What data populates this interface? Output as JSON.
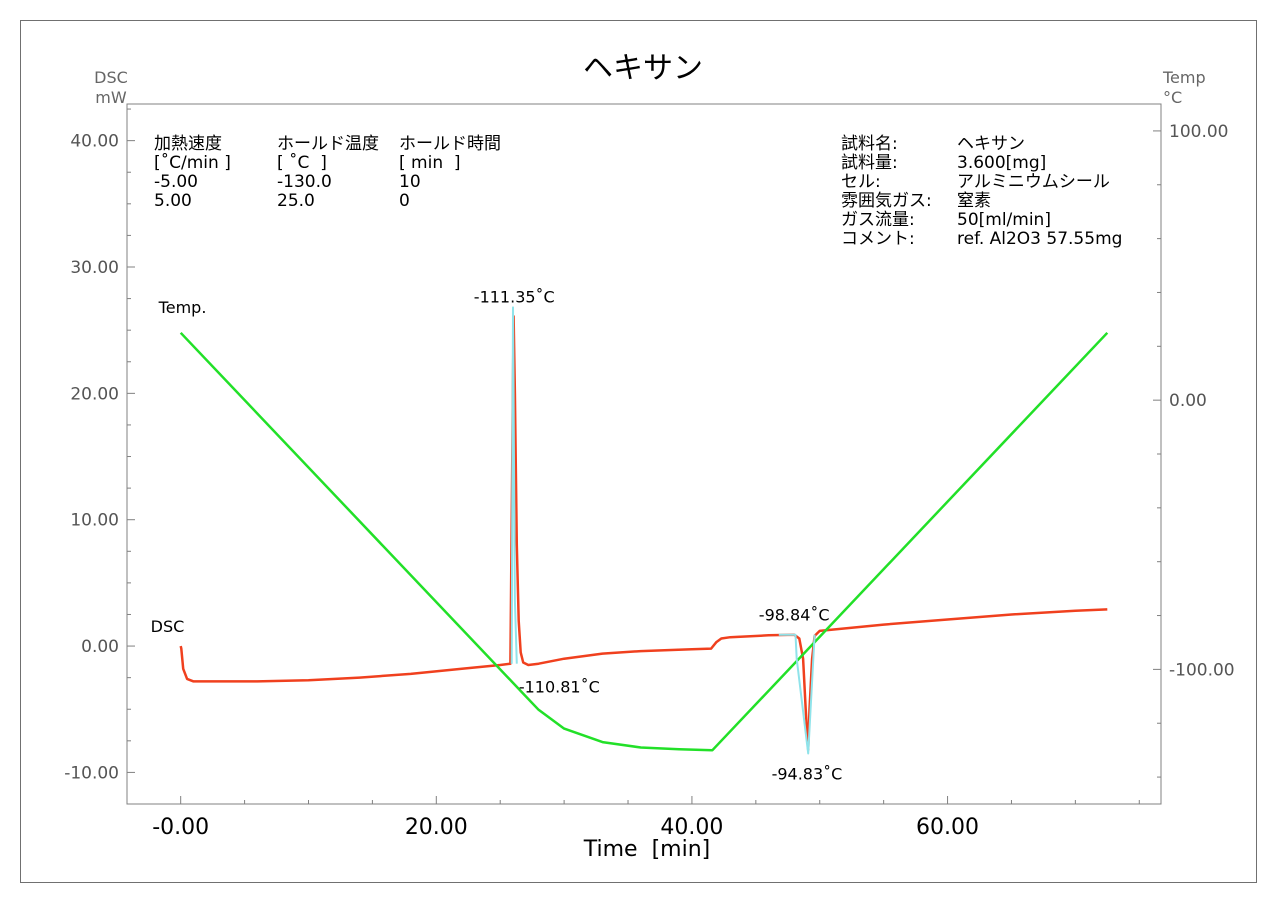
{
  "chart_data": {
    "type": "line",
    "title": "ヘキサン",
    "xlabel": "Time  [min]",
    "ylabel_left": [
      "DSC",
      "mW"
    ],
    "ylabel_right": [
      "Temp",
      "°C"
    ],
    "xlim": [
      -4.2,
      76.7
    ],
    "ylim_left": [
      -12.5,
      42.9
    ],
    "ylim_right": [
      -150,
      110
    ],
    "x_ticks": [
      "-0.00",
      "20.00",
      "40.00",
      "60.00"
    ],
    "y_left_ticks": [
      "40.00",
      "30.00",
      "20.00",
      "10.00",
      "0.00",
      "-10.00"
    ],
    "y_right_ticks": [
      "100.00",
      "0.00",
      "-100.00"
    ],
    "grid": false,
    "program_table": {
      "headers": [
        "加熱速度",
        "ホールド温度",
        "ホールド時間"
      ],
      "units": [
        "[˚C/min ]",
        "[ ˚C  ]",
        "[ min  ]"
      ],
      "rows": [
        [
          "-5.00",
          "-130.0",
          "10"
        ],
        [
          "5.00",
          "25.0",
          "0"
        ]
      ]
    },
    "sample_info": [
      {
        "label": "試料名:",
        "value": "ヘキサン"
      },
      {
        "label": "試料量:",
        "value": "3.600[mg]"
      },
      {
        "label": "セル:",
        "value": "アルミニウムシール"
      },
      {
        "label": "雰囲気ガス:",
        "value": "窒素"
      },
      {
        "label": "ガス流量:",
        "value": "50[ml/min]"
      },
      {
        "label": "コメント:",
        "value": "ref. Al2O3 57.55mg"
      }
    ],
    "series": [
      {
        "name": "DSC",
        "axis": "left",
        "color": "#f0401e",
        "x": [
          0,
          0.05,
          0.2,
          0.5,
          1,
          3,
          6,
          10,
          14,
          18,
          22,
          25,
          25.8,
          25.9,
          26.05,
          26.15,
          26.3,
          26.45,
          26.6,
          26.8,
          27.2,
          28,
          30,
          33,
          36,
          40,
          41.5,
          41.9,
          42.3,
          43,
          46,
          48,
          48.4,
          48.7,
          48.9,
          49.1,
          49.2,
          49.4,
          49.6,
          50,
          51,
          55,
          60,
          65,
          70,
          72.5
        ],
        "y": [
          0.0,
          -0.2,
          -1.8,
          -2.6,
          -2.8,
          -2.8,
          -2.8,
          -2.7,
          -2.5,
          -2.2,
          -1.8,
          -1.5,
          -1.4,
          10.0,
          26.1,
          20.0,
          8.0,
          2.0,
          -0.5,
          -1.3,
          -1.5,
          -1.4,
          -1.0,
          -0.6,
          -0.4,
          -0.25,
          -0.2,
          0.3,
          0.6,
          0.7,
          0.85,
          0.9,
          0.6,
          -1.0,
          -5.0,
          -8.2,
          -5.0,
          -1.0,
          0.8,
          1.2,
          1.3,
          1.7,
          2.1,
          2.5,
          2.8,
          2.9
        ]
      },
      {
        "name": "Temp.",
        "axis": "right",
        "color": "#22e028",
        "x": [
          0,
          26.9,
          28,
          30,
          33,
          36,
          39,
          41.6,
          72.5
        ],
        "y": [
          25,
          -109.5,
          -115,
          -122,
          -127,
          -129,
          -129.7,
          -130,
          25
        ]
      },
      {
        "name": "baseline",
        "axis": "left",
        "color": "#8fe3ea",
        "x": [
          25.9,
          26.0,
          26.15,
          26.3,
          46.8,
          48.1,
          48.2,
          49.1,
          49.6
        ],
        "y": [
          -1.4,
          26.8,
          3.6,
          -1.4,
          0.9,
          0.9,
          -1.0,
          -8.5,
          0.9
        ]
      }
    ],
    "annotations": [
      {
        "text": "-111.35˚C",
        "x": 26.1,
        "y": 26.1,
        "anchor": "above"
      },
      {
        "text": "-110.81˚C",
        "x": 26.3,
        "y": -1.4,
        "anchor": "right"
      },
      {
        "text": "-98.84˚C",
        "x": 48.0,
        "y": 0.9,
        "anchor": "above"
      },
      {
        "text": "-94.83˚C",
        "x": 49.0,
        "y": -8.2,
        "anchor": "below"
      }
    ],
    "curve_labels": [
      {
        "text": "DSC",
        "series": "DSC"
      },
      {
        "text": "Temp.",
        "series": "Temp."
      }
    ]
  }
}
